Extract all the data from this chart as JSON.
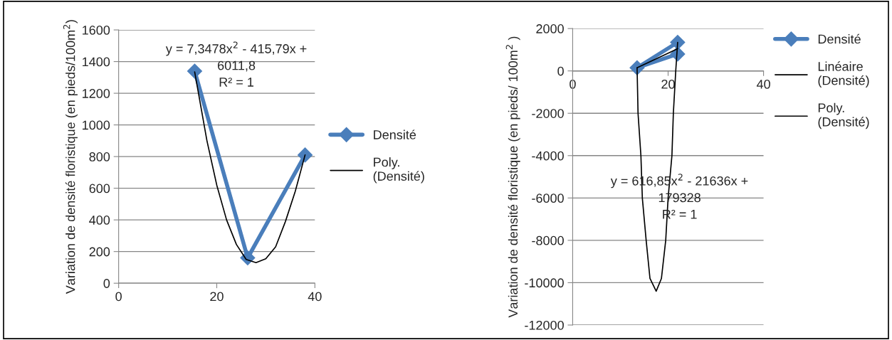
{
  "chart_data": [
    {
      "type": "line",
      "ylabel": "Variation de densité floristique (en pieds/100m$^{2}$)",
      "xlim": [
        0,
        40
      ],
      "xticks": [
        0,
        20,
        40
      ],
      "ylim": [
        0,
        1600
      ],
      "yticks": [
        0,
        200,
        400,
        600,
        800,
        1000,
        1200,
        1400,
        1600
      ],
      "grid": "y",
      "legend": "right",
      "annotations": [
        "y = 7,3478x$^{2}$ - 415,79x +\n6011,8\nR² = 1"
      ],
      "series": [
        {
          "name": "Densité",
          "color": "#4a7ebb",
          "marker": "diamond",
          "x": [
            15.5,
            26.3,
            38
          ],
          "values": [
            1340,
            160,
            810
          ]
        },
        {
          "name": "Poly. (Densité)",
          "color": "#000000",
          "marker": "none",
          "x": [
            15.5,
            18,
            20,
            22,
            24,
            26,
            28,
            30,
            32,
            34,
            36,
            38
          ],
          "values": [
            1335,
            900,
            620,
            400,
            245,
            150,
            130,
            155,
            230,
            390,
            580,
            810
          ]
        }
      ]
    },
    {
      "type": "line",
      "ylabel": "Variation de densité floristique (en pieds/ 100m$^{2}$ )",
      "xlim": [
        0,
        40
      ],
      "xticks": [
        0,
        20,
        40
      ],
      "ylim": [
        -12000,
        2000
      ],
      "yticks": [
        -12000,
        -10000,
        -8000,
        -6000,
        -4000,
        -2000,
        0,
        2000
      ],
      "grid": "y",
      "legend": "top right",
      "annotations": [
        "y = 616,85x$^{2}$ - 21636x +\n179328\nR² = 1"
      ],
      "series": [
        {
          "name": "Densité",
          "color": "#4a7ebb",
          "marker": "diamond",
          "x": [
            22,
            13.5,
            22
          ],
          "values": [
            1350,
            150,
            800
          ]
        },
        {
          "name": "Linéaire (Densité)",
          "color": "#000000",
          "marker": "none",
          "x": [
            13.5,
            22
          ],
          "values": [
            150,
            1050
          ]
        },
        {
          "name": "Poly. (Densité)",
          "color": "#000000",
          "marker": "none",
          "x": [
            13.5,
            13.7,
            14.3,
            14.6,
            15.4,
            16.2,
            17.5,
            18.6,
            19.5,
            20,
            20.8,
            21.1,
            21.6,
            22
          ],
          "values": [
            150,
            -2000,
            -4000,
            -6000,
            -8000,
            -9800,
            -10400,
            -9800,
            -8000,
            -6000,
            -4000,
            -2000,
            0,
            1350
          ]
        }
      ]
    }
  ]
}
